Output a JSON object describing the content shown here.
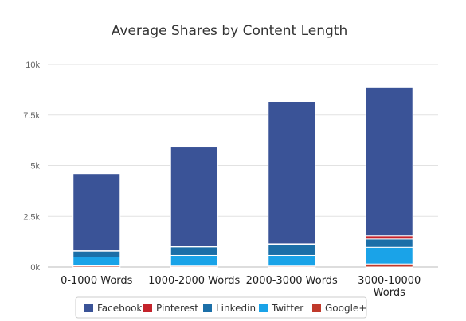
{
  "chart_data": {
    "type": "bar",
    "stacked": true,
    "title": "Average Shares by Content Length",
    "categories": [
      "0-1000 Words",
      "1000-2000 Words",
      "2000-3000 Words",
      "3000-10000 Words"
    ],
    "series": [
      {
        "name": "Google+",
        "color": "#c0392b",
        "values": [
          60,
          50,
          50,
          150
        ]
      },
      {
        "name": "Twitter",
        "color": "#1aa3e8",
        "values": [
          430,
          520,
          520,
          820
        ]
      },
      {
        "name": "Linkedin",
        "color": "#1b6fa8",
        "values": [
          290,
          420,
          550,
          410
        ]
      },
      {
        "name": "Pinterest",
        "color": "#c4232b",
        "values": [
          20,
          20,
          20,
          160
        ]
      },
      {
        "name": "Facebook",
        "color": "#3a5397",
        "values": [
          3800,
          4930,
          7030,
          7310
        ]
      }
    ],
    "legend_order": [
      "Facebook",
      "Pinterest",
      "Linkedin",
      "Twitter",
      "Google+"
    ],
    "ylim": [
      0,
      10000
    ],
    "yticks": [
      0,
      2500,
      5000,
      7500,
      10000
    ],
    "ytick_labels": [
      "0k",
      "2.5k",
      "5k",
      "7.5k",
      "10k"
    ],
    "grid": true,
    "legend_position": "bottom"
  }
}
